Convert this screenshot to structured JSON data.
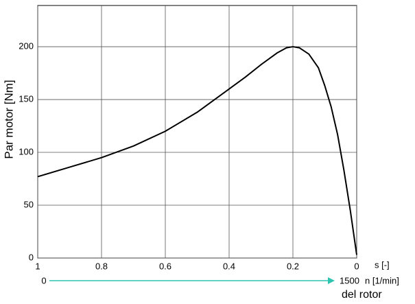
{
  "chart_data": {
    "type": "line",
    "y_label": "Par motor [Nm]",
    "x_label": "s [-]",
    "x": [
      1,
      0.9,
      0.8,
      0.7,
      0.6,
      0.5,
      0.4,
      0.35,
      0.3,
      0.25,
      0.22,
      0.2,
      0.18,
      0.15,
      0.12,
      0.1,
      0.08,
      0.06,
      0.04,
      0.02,
      0
    ],
    "series": [
      {
        "name": "Par motor",
        "color": "#000000",
        "values": [
          77,
          86,
          95,
          106,
          120,
          138,
          160,
          171,
          183,
          194,
          199,
          200,
          199,
          193,
          180,
          163,
          143,
          117,
          83,
          45,
          3
        ]
      }
    ],
    "xlim": [
      1,
      0
    ],
    "ylim": [
      0,
      239
    ],
    "xticks": [
      1,
      0.8,
      0.6,
      0.4,
      0.2,
      0
    ],
    "yticks": [
      0,
      50,
      100,
      150,
      200
    ],
    "grid": true,
    "speed_axis": {
      "start": "0",
      "end": "1500",
      "label": "n [1/min]",
      "sublabel": "del rotor",
      "color": "#2ec4b0"
    }
  }
}
